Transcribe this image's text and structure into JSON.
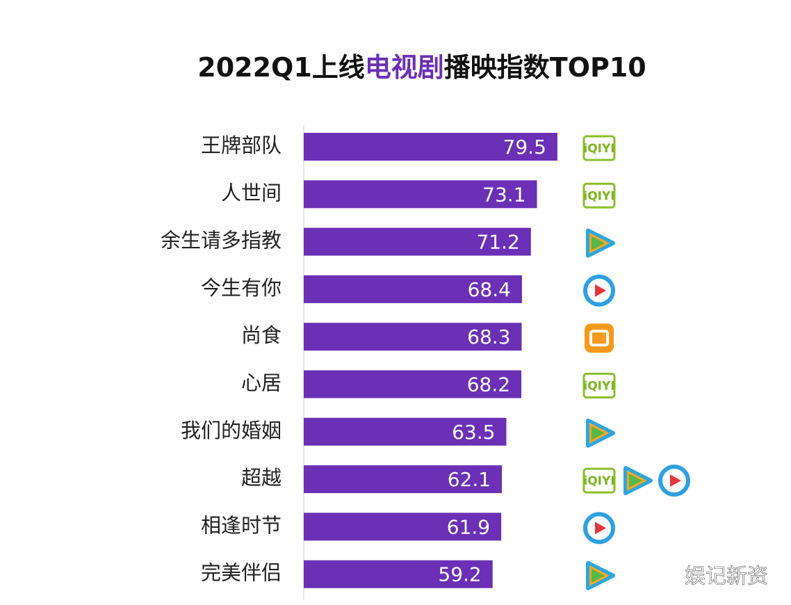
{
  "chart_data": {
    "type": "bar",
    "orientation": "horizontal",
    "title": [
      "2022Q1上线",
      "电视剧",
      "播映指数TOP10"
    ],
    "title_colors": [
      "#111111",
      "#6b30b5",
      "#111111"
    ],
    "categories": [
      "王牌部队",
      "人世间",
      "余生请多指教",
      "今生有你",
      "尚食",
      "心居",
      "我们的婚姻",
      "超越",
      "相逢时节",
      "完美伴侣"
    ],
    "values": [
      79.5,
      73.1,
      71.2,
      68.4,
      68.3,
      68.2,
      63.5,
      62.1,
      61.9,
      59.2
    ],
    "color": "#6b30b5",
    "xlim": [
      0,
      100
    ],
    "logo_text": "iQIYI",
    "watermark": "娱记新资"
  }
}
